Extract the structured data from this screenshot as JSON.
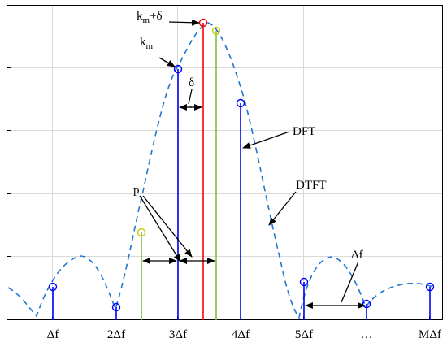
{
  "figure": {
    "colors": {
      "dtft": "#1f77d4",
      "dft_stem": "#0000ff",
      "peak": "#ff0000",
      "aux": "#7fbf3f",
      "aux_marker": "#cccc00",
      "grid": "#d9d9d9",
      "axis": "#000000"
    },
    "x_ticks": [
      "Δf",
      "2Δf",
      "3Δf",
      "4Δf",
      "5Δf",
      "…",
      "MΔf"
    ],
    "labels": {
      "km_delta": {
        "main": "k",
        "sub": "m",
        "tail": "+δ"
      },
      "km": {
        "main": "k",
        "sub": "m"
      },
      "delta": "δ",
      "p": "p",
      "dft": "DFT",
      "dtft": "DTFT",
      "df": "Δf"
    }
  }
}
